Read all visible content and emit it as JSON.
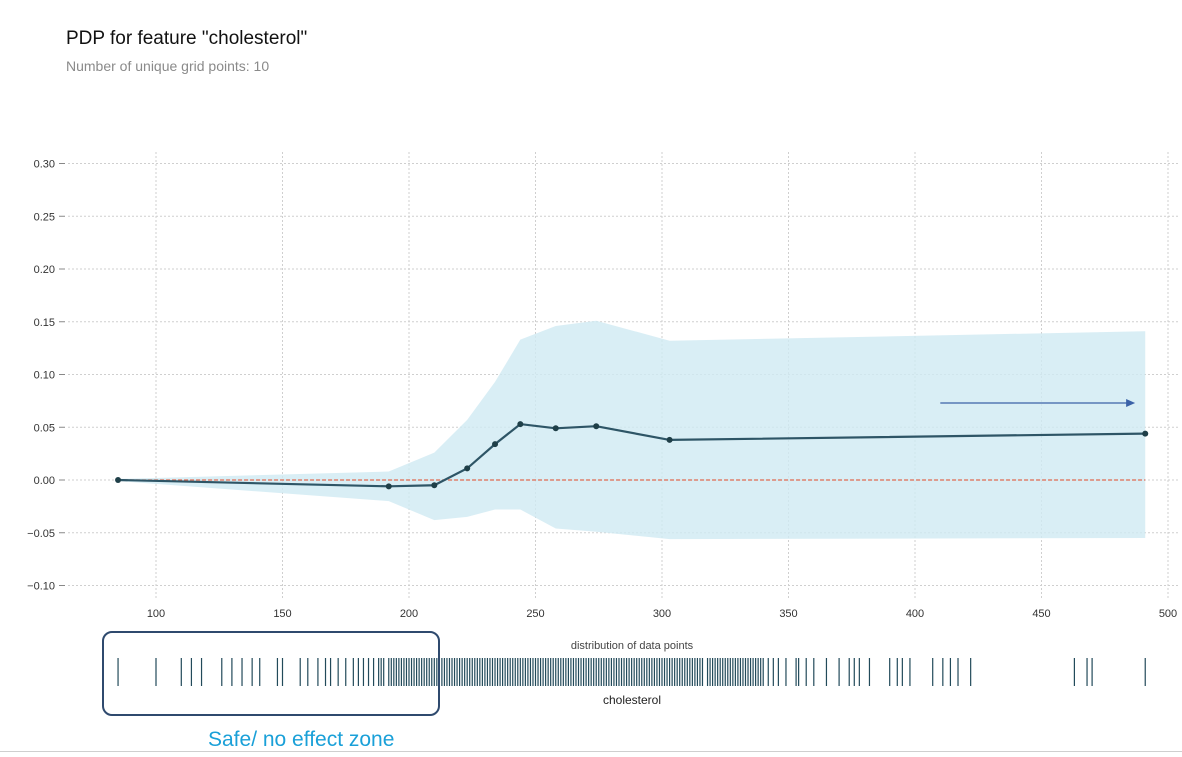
{
  "chart_data": {
    "type": "line",
    "title": "PDP for feature \"cholesterol\"",
    "subtitle": "Number of unique grid points: 10",
    "xlabel": "cholesterol",
    "ylabel": "",
    "xlim": [
      70,
      505
    ],
    "ylim": [
      -0.11,
      0.305
    ],
    "x_ticks": [
      100,
      150,
      200,
      250,
      300,
      350,
      400,
      450,
      500
    ],
    "y_ticks": [
      -0.1,
      -0.05,
      0.0,
      0.05,
      0.1,
      0.15,
      0.2,
      0.25,
      0.3
    ],
    "grid": true,
    "series": [
      {
        "values": [
          {
            "x": 85,
            "y": 0.0
          },
          {
            "x": 192,
            "y": -0.006
          },
          {
            "x": 210,
            "y": -0.005
          },
          {
            "x": 223,
            "y": 0.011
          },
          {
            "x": 234,
            "y": 0.034
          },
          {
            "x": 244,
            "y": 0.053
          },
          {
            "x": 258,
            "y": 0.049
          },
          {
            "x": 274,
            "y": 0.051
          },
          {
            "x": 303,
            "y": 0.038
          },
          {
            "x": 491,
            "y": 0.044
          }
        ],
        "color": "#2e5566"
      }
    ],
    "band": {
      "upper": [
        {
          "x": 85,
          "y": 0.001
        },
        {
          "x": 192,
          "y": 0.008
        },
        {
          "x": 210,
          "y": 0.026
        },
        {
          "x": 223,
          "y": 0.057
        },
        {
          "x": 234,
          "y": 0.093
        },
        {
          "x": 244,
          "y": 0.133
        },
        {
          "x": 258,
          "y": 0.146
        },
        {
          "x": 274,
          "y": 0.151
        },
        {
          "x": 303,
          "y": 0.132
        },
        {
          "x": 491,
          "y": 0.141
        }
      ],
      "lower": [
        {
          "x": 85,
          "y": -0.001
        },
        {
          "x": 192,
          "y": -0.02
        },
        {
          "x": 210,
          "y": -0.038
        },
        {
          "x": 223,
          "y": -0.035
        },
        {
          "x": 234,
          "y": -0.028
        },
        {
          "x": 244,
          "y": -0.028
        },
        {
          "x": 258,
          "y": -0.046
        },
        {
          "x": 274,
          "y": -0.049
        },
        {
          "x": 303,
          "y": -0.056
        },
        {
          "x": 491,
          "y": -0.055
        }
      ],
      "color": "#cfeaf3"
    },
    "reference_line": {
      "y": 0.0,
      "color": "#e06a50"
    },
    "arrow": {
      "x_from": 410,
      "x_to": 487,
      "y": 0.073,
      "color": "#3b62a8"
    },
    "rug": {
      "title": "distribution of data points",
      "xlabel": "cholesterol",
      "color": "#224a5a",
      "values": [
        85,
        100,
        110,
        114,
        118,
        126,
        130,
        134,
        138,
        141,
        148,
        150,
        157,
        160,
        164,
        167,
        169,
        172,
        175,
        178,
        180,
        182,
        184,
        186,
        188,
        189,
        190,
        192,
        193,
        194,
        195,
        196,
        197,
        198,
        199,
        200,
        201,
        202,
        203,
        204,
        205,
        206,
        207,
        208,
        209,
        210,
        211,
        212,
        213,
        214,
        215,
        216,
        217,
        218,
        219,
        220,
        221,
        222,
        223,
        224,
        225,
        226,
        227,
        228,
        229,
        230,
        231,
        232,
        233,
        234,
        235,
        236,
        237,
        238,
        239,
        240,
        241,
        242,
        243,
        244,
        245,
        246,
        247,
        248,
        249,
        250,
        251,
        252,
        253,
        254,
        255,
        256,
        257,
        258,
        259,
        260,
        261,
        262,
        263,
        264,
        265,
        266,
        267,
        268,
        269,
        270,
        271,
        272,
        273,
        274,
        275,
        276,
        277,
        278,
        279,
        280,
        281,
        282,
        283,
        284,
        285,
        286,
        287,
        288,
        289,
        290,
        291,
        292,
        293,
        294,
        295,
        296,
        297,
        298,
        299,
        300,
        301,
        302,
        303,
        304,
        305,
        306,
        307,
        308,
        309,
        310,
        311,
        312,
        313,
        314,
        315,
        316,
        318,
        319,
        320,
        321,
        322,
        323,
        324,
        325,
        326,
        327,
        328,
        329,
        330,
        331,
        332,
        333,
        334,
        335,
        336,
        337,
        338,
        339,
        340,
        342,
        344,
        346,
        349,
        353,
        354,
        357,
        360,
        365,
        370,
        374,
        376,
        378,
        382,
        390,
        393,
        395,
        398,
        407,
        411,
        414,
        417,
        422,
        463,
        468,
        470,
        491
      ]
    }
  },
  "annotation": {
    "zone_label": "Safe/ no effect zone"
  }
}
